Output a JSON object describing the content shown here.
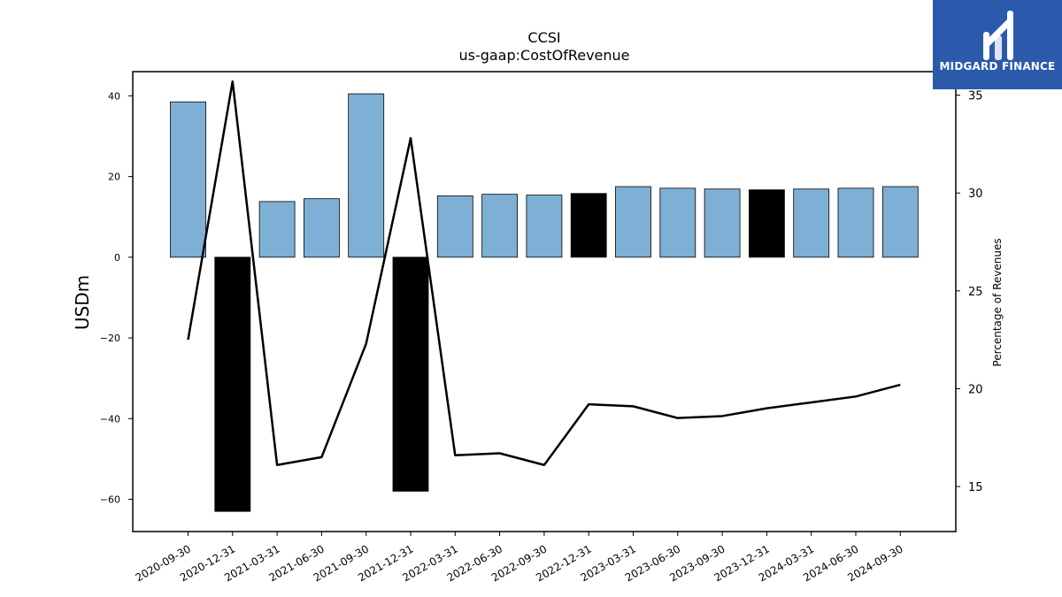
{
  "chart_data": {
    "type": "bar",
    "title": "CCSI",
    "subtitle": "us-gaap:CostOfRevenue",
    "ylabel": "USDm",
    "y2label": "Percentage of Revenues",
    "ylim": [
      -68,
      46
    ],
    "y2lim": [
      12.7,
      36.2
    ],
    "yticks": [
      -60,
      -40,
      -20,
      0,
      20,
      40
    ],
    "y2ticks": [
      15,
      20,
      25,
      30,
      35
    ],
    "categories": [
      "2020-09-30",
      "2020-12-31",
      "2021-03-31",
      "2021-06-30",
      "2021-09-30",
      "2021-12-31",
      "2022-03-31",
      "2022-06-30",
      "2022-09-30",
      "2022-12-31",
      "2023-03-31",
      "2023-06-30",
      "2023-09-30",
      "2023-12-31",
      "2024-03-31",
      "2024-06-30",
      "2024-09-30"
    ],
    "series": [
      {
        "kind": "bar",
        "values": [
          38.5,
          -63.0,
          13.8,
          14.5,
          40.5,
          -58.0,
          15.2,
          15.6,
          15.4,
          15.8,
          17.5,
          17.1,
          16.9,
          16.7,
          16.9,
          17.1,
          17.5
        ],
        "colors": [
          "#7eb0d5",
          "#000000",
          "#7eb0d5",
          "#7eb0d5",
          "#7eb0d5",
          "#000000",
          "#7eb0d5",
          "#7eb0d5",
          "#7eb0d5",
          "#000000",
          "#7eb0d5",
          "#7eb0d5",
          "#7eb0d5",
          "#000000",
          "#7eb0d5",
          "#7eb0d5",
          "#7eb0d5"
        ]
      },
      {
        "kind": "line",
        "axis": "right",
        "color": "#000000",
        "values": [
          22.5,
          35.7,
          16.1,
          16.5,
          22.3,
          32.8,
          16.6,
          16.7,
          16.1,
          19.2,
          19.1,
          18.5,
          18.6,
          19.0,
          19.3,
          19.6,
          20.2
        ]
      }
    ],
    "grid": false
  },
  "logo": {
    "text": "MIDGARD FINANCE",
    "bg": "#2b5aad"
  }
}
